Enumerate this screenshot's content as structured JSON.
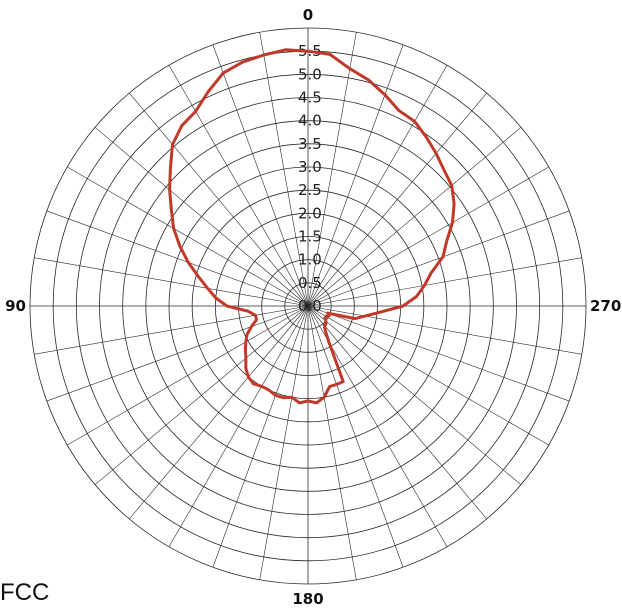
{
  "chart_data": {
    "type": "polar-line",
    "title": "",
    "theta_direction": "counterclockwise",
    "theta_zero": "top",
    "r_max": 6.0,
    "r_ticks": [
      "0.0",
      "0.5",
      "1.0",
      "1.5",
      "2.0",
      "2.5",
      "3.0",
      "3.5",
      "4.0",
      "4.5",
      "5.0",
      "5.5"
    ],
    "angle_labels": [
      {
        "deg": 0,
        "text": "0"
      },
      {
        "deg": 90,
        "text": "90"
      },
      {
        "deg": 180,
        "text": "180"
      },
      {
        "deg": 270,
        "text": "270"
      }
    ],
    "spoke_step_deg": 10,
    "grid": true,
    "series": [
      {
        "color": "#c0392b",
        "theta": [
          0,
          5,
          10,
          15,
          20,
          25,
          30,
          35,
          40,
          45,
          50,
          55,
          60,
          65,
          70,
          75,
          80,
          85,
          90,
          95,
          100,
          105,
          110,
          115,
          120,
          125,
          130,
          135,
          140,
          145,
          150,
          155,
          160,
          165,
          170,
          175,
          180,
          185,
          190,
          195,
          200,
          205,
          210,
          215,
          220,
          225,
          230,
          235,
          240,
          245,
          250,
          255,
          260,
          265,
          270,
          275,
          280,
          285,
          290,
          295,
          300,
          305,
          310,
          315,
          320,
          325,
          330,
          335,
          340,
          345,
          350,
          355
        ],
        "r": [
          5.5,
          5.55,
          5.5,
          5.45,
          5.35,
          5.1,
          4.85,
          4.75,
          4.55,
          4.2,
          3.9,
          3.6,
          3.35,
          3.05,
          2.75,
          2.45,
          2.2,
          2.0,
          1.75,
          1.3,
          1.15,
          1.15,
          1.3,
          1.45,
          1.55,
          1.65,
          1.75,
          1.9,
          2.0,
          2.05,
          2.0,
          2.0,
          2.05,
          2.05,
          2.0,
          2.1,
          2.05,
          2.1,
          2.0,
          1.8,
          1.8,
          1.8,
          0.9,
          0.65,
          0.55,
          0.55,
          0.5,
          0.45,
          0.45,
          0.5,
          0.45,
          1.05,
          1.25,
          1.55,
          2.05,
          2.35,
          2.55,
          2.75,
          3.1,
          3.3,
          3.6,
          3.85,
          4.05,
          4.15,
          4.3,
          4.45,
          4.6,
          4.65,
          4.85,
          5.05,
          5.2,
          5.45
        ]
      }
    ]
  },
  "caption": "FCC"
}
